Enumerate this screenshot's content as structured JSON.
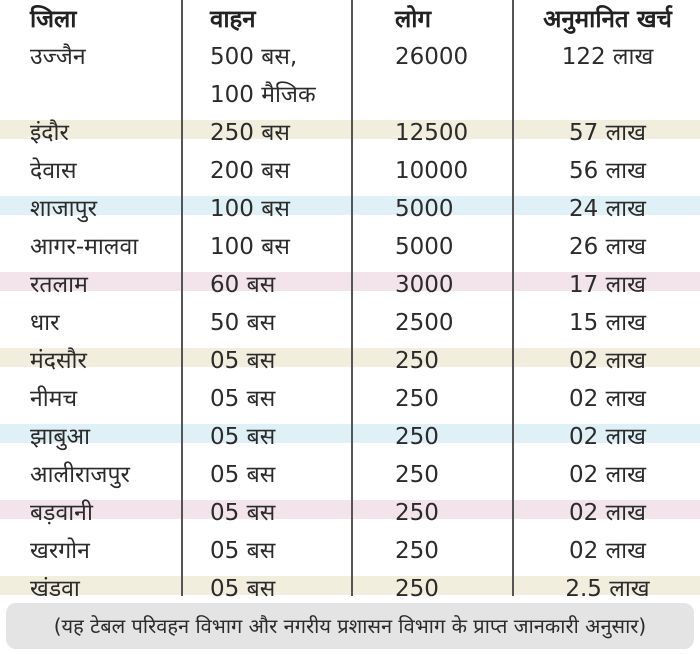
{
  "colors": {
    "stripe_cream": "#f1eedd",
    "stripe_blue": "#dff0f6",
    "stripe_pink": "#f3e3ea",
    "lines": "#555555",
    "footnote_bg": "#e4e4e4"
  },
  "table": {
    "headers": [
      "जिला",
      "वाहन",
      "लोग",
      "अनुमानित खर्च"
    ],
    "rows": [
      {
        "district": "उज्जैन",
        "vehicles": "500 बस,",
        "vehicles_2": "100 मैजिक",
        "people": "26000",
        "cost": "122 लाख",
        "stripe": "none"
      },
      {
        "district": "इंदौर",
        "vehicles": "250 बस",
        "people": "12500",
        "cost": "57 लाख",
        "stripe": "cream"
      },
      {
        "district": "देवास",
        "vehicles": "200 बस",
        "people": "10000",
        "cost": "56 लाख",
        "stripe": "none"
      },
      {
        "district": "शाजापुर",
        "vehicles": "100 बस",
        "people": "5000",
        "cost": "24 लाख",
        "stripe": "blue"
      },
      {
        "district": "आगर-मालवा",
        "vehicles": "100 बस",
        "people": "5000",
        "cost": "26 लाख",
        "stripe": "none"
      },
      {
        "district": "रतलाम",
        "vehicles": "60 बस",
        "people": "3000",
        "cost": "17 लाख",
        "stripe": "pink"
      },
      {
        "district": "धार",
        "vehicles": "50 बस",
        "people": "2500",
        "cost": "15 लाख",
        "stripe": "none"
      },
      {
        "district": "मंदसौर",
        "vehicles": "05 बस",
        "people": "250",
        "cost": "02 लाख",
        "stripe": "cream"
      },
      {
        "district": "नीमच",
        "vehicles": "05 बस",
        "people": "250",
        "cost": "02 लाख",
        "stripe": "none"
      },
      {
        "district": "झाबुआ",
        "vehicles": "05 बस",
        "people": "250",
        "cost": "02 लाख",
        "stripe": "blue"
      },
      {
        "district": "आलीराजपुर",
        "vehicles": "05 बस",
        "people": "250",
        "cost": "02 लाख",
        "stripe": "none"
      },
      {
        "district": "बड़वानी",
        "vehicles": "05 बस",
        "people": "250",
        "cost": "02 लाख",
        "stripe": "pink"
      },
      {
        "district": "खरगोन",
        "vehicles": "05 बस",
        "people": "250",
        "cost": "02 लाख",
        "stripe": "none"
      },
      {
        "district": "खंडवा",
        "vehicles": "05 बस",
        "people": "250",
        "cost": "2.5 लाख",
        "stripe": "cream"
      }
    ]
  },
  "footnote": "(यह टेबल परिवहन विभाग और नगरीय प्रशासन विभाग के प्राप्त जानकारी अनुसार)"
}
